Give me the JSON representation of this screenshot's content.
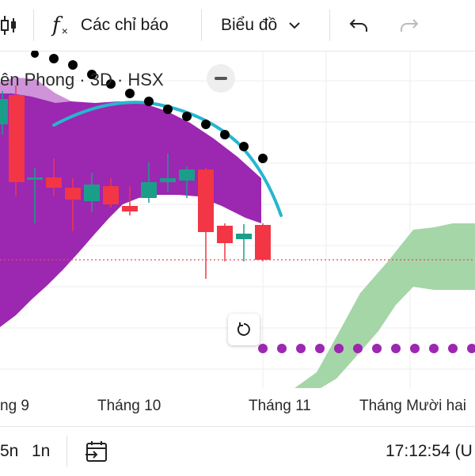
{
  "toolbar": {
    "indicators_label": "Các chỉ báo",
    "chart_type_label": "Biểu đồ",
    "icons": [
      "candles-icon",
      "function-icon",
      "chevron-down-icon",
      "undo-icon",
      "redo-icon"
    ]
  },
  "legend": {
    "symbol_text": "ên Phong · 3D · HSX"
  },
  "x_axis": {
    "ticks": [
      "ng 9",
      "Tháng 10",
      "Tháng 11",
      "Tháng Mười hai"
    ]
  },
  "bottom_bar": {
    "range_5n": "5n",
    "range_1n": "1n",
    "clock": "17:12:54 (U"
  },
  "colors": {
    "up": "#1a9e8a",
    "down": "#f23645",
    "cloud_purple": "#9c27b0",
    "cloud_green": "#a5d6a7",
    "curve": "#26b6cf",
    "purple_dots": "#9c27b0",
    "black_dots": "#000000",
    "price_line": "#e05050"
  }
}
